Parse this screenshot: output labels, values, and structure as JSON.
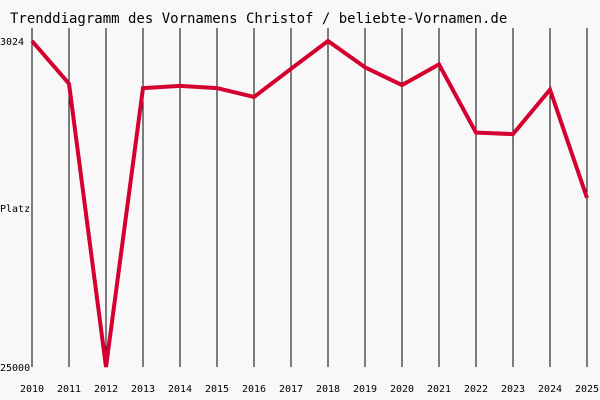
{
  "chart_data": {
    "type": "line",
    "title": "Trenddiagramm des Vornamens Christof / beliebte-Vornamen.de",
    "xlabel": "",
    "ylabel": "Platz",
    "y_tick_labels": [
      "3024",
      "25000"
    ],
    "y_axis_inverted": true,
    "x": [
      "2010",
      "2011",
      "2012",
      "2013",
      "2014",
      "2015",
      "2016",
      "2017",
      "2018",
      "2019",
      "2020",
      "2021",
      "2022",
      "2023",
      "2024",
      "2025"
    ],
    "series": [
      {
        "values": [
          3024,
          5900,
          25000,
          6200,
          6050,
          6200,
          6800,
          4900,
          3024,
          4800,
          6000,
          4600,
          9200,
          9300,
          6300,
          13600
        ]
      }
    ],
    "ylim": [
      3024,
      25000
    ],
    "grid": "vertical lines at each year",
    "legend": "none",
    "line_color": "#d4002f",
    "grid_color": "#000000"
  }
}
